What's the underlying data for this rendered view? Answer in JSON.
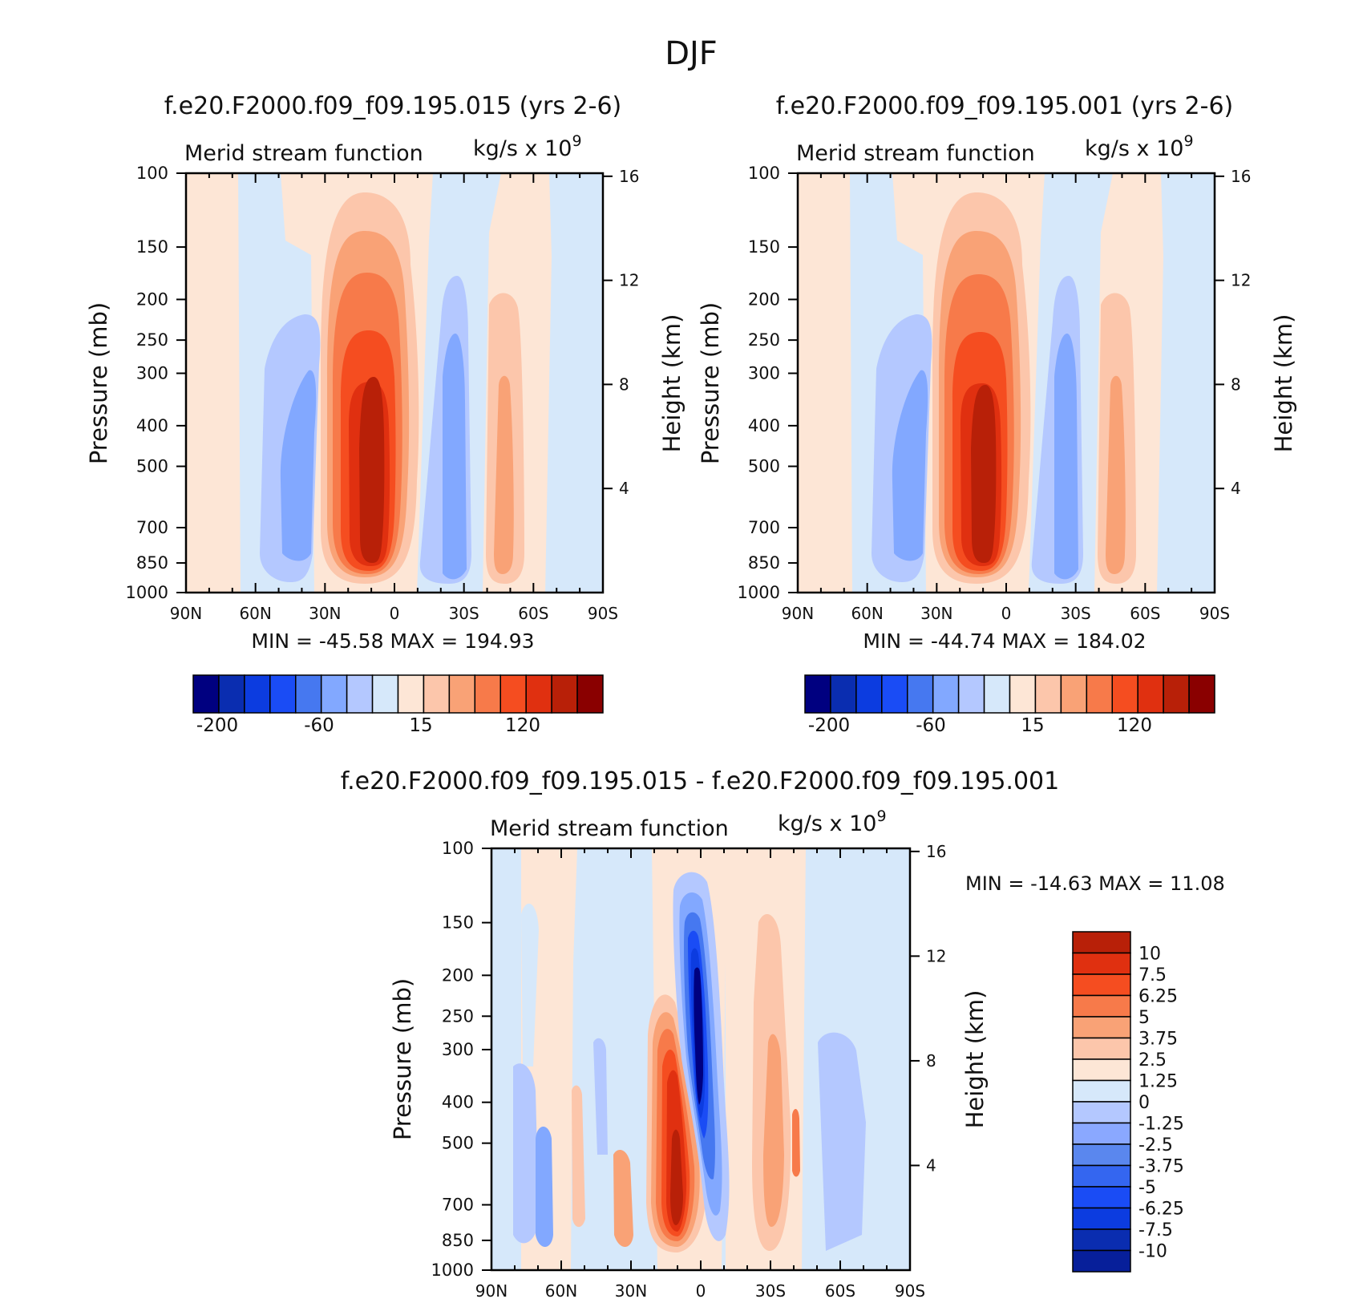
{
  "title": "DJF",
  "xticks": [
    "90N",
    "60N",
    "30N",
    "0",
    "30S",
    "60S",
    "90S"
  ],
  "pticks": [
    "100",
    "150",
    "200",
    "250",
    "300",
    "400",
    "500",
    "700",
    "850",
    "1000"
  ],
  "hticks": [
    "16",
    "12",
    "8",
    "4"
  ],
  "colors": {
    "cb16": [
      "#000080",
      "#0a2db0",
      "#0c3ce0",
      "#1a4cf5",
      "#4678f0",
      "#82a8ff",
      "#b4c8ff",
      "#d6e8fa",
      "#fde6d6",
      "#fcc6ab",
      "#f9a276",
      "#f77a4a",
      "#f54d20",
      "#e03010",
      "#b82008",
      "#8a0000"
    ],
    "cb18": [
      "#000080",
      "#071f9a",
      "#0a2db0",
      "#0c3ce0",
      "#1a4cf5",
      "#3466f0",
      "#5a87ee",
      "#8aa8ff",
      "#b4c8ff",
      "#d6e8fa",
      "#fde6d6",
      "#fcc6ab",
      "#f9a276",
      "#f77a4a",
      "#f54d20",
      "#e03010",
      "#b82008",
      "#8a0000"
    ]
  },
  "panel1": {
    "case_title": "f.e20.F2000.f09_f09.195.015 (yrs  2-6)",
    "left_label": "Merid stream function",
    "units_label": "kg/s x 10",
    "units_exp": "9",
    "ylabel": "Pressure (mb)",
    "y2label": "Height (km)",
    "stats": "MIN = -45.58   MAX = 194.93",
    "cb_labels": [
      "-200",
      "-60",
      "15",
      "120"
    ]
  },
  "panel2": {
    "case_title": "f.e20.F2000.f09_f09.195.001 (yrs  2-6)",
    "left_label": "Merid stream function",
    "units_label": "kg/s x 10",
    "units_exp": "9",
    "ylabel": "Pressure (mb)",
    "y2label": "Height (km)",
    "stats": "MIN = -44.74   MAX = 184.02",
    "cb_labels": [
      "-200",
      "-60",
      "15",
      "120"
    ]
  },
  "panel3": {
    "case_title": "f.e20.F2000.f09_f09.195.015 - f.e20.F2000.f09_f09.195.001",
    "left_label": "Merid stream function",
    "units_label": "kg/s x 10",
    "units_exp": "9",
    "ylabel": "Pressure (mb)",
    "y2label": "Height (km)",
    "stats": "MIN = -14.63   MAX =   11.08",
    "cb_labels": [
      "10",
      "7.5",
      "6.25",
      "5",
      "3.75",
      "2.5",
      "1.25",
      "0",
      "-1.25",
      "-2.5",
      "-3.75",
      "-5",
      "-6.25",
      "-7.5",
      "-10"
    ]
  },
  "chart_data": [
    {
      "type": "heatmap",
      "title": "f.e20.F2000.f09_f09.195.015 (yrs  2-6)",
      "field": "Merid stream function",
      "units": "kg/s x 10^9",
      "xlabel": "",
      "ylabel": "Pressure (mb)",
      "y2label": "Height (km)",
      "xlim": [
        "90N",
        "90S"
      ],
      "ylim": [
        1000,
        100
      ],
      "min": -45.58,
      "max": 194.93,
      "features": [
        {
          "sign": "positive",
          "lat_center": "10N",
          "peak_level_mb": 500,
          "value": 194.93
        },
        {
          "sign": "negative",
          "lat_center": "40N",
          "peak_level_mb": 500,
          "value": -45.58
        },
        {
          "sign": "negative",
          "lat_center": "25S",
          "peak_level_mb": 500
        },
        {
          "sign": "positive",
          "lat_center": "48S",
          "peak_level_mb": 500
        }
      ]
    },
    {
      "type": "heatmap",
      "title": "f.e20.F2000.f09_f09.195.001 (yrs  2-6)",
      "field": "Merid stream function",
      "units": "kg/s x 10^9",
      "xlabel": "",
      "ylabel": "Pressure (mb)",
      "y2label": "Height (km)",
      "xlim": [
        "90N",
        "90S"
      ],
      "ylim": [
        1000,
        100
      ],
      "min": -44.74,
      "max": 184.02,
      "features": [
        {
          "sign": "positive",
          "lat_center": "10N",
          "peak_level_mb": 500,
          "value": 184.02
        },
        {
          "sign": "negative",
          "lat_center": "40N",
          "peak_level_mb": 500,
          "value": -44.74
        },
        {
          "sign": "negative",
          "lat_center": "25S",
          "peak_level_mb": 500
        },
        {
          "sign": "positive",
          "lat_center": "48S",
          "peak_level_mb": 500
        }
      ]
    },
    {
      "type": "heatmap",
      "title": "f.e20.F2000.f09_f09.195.015 - f.e20.F2000.f09_f09.195.001",
      "field": "Merid stream function",
      "units": "kg/s x 10^9",
      "xlabel": "",
      "ylabel": "Pressure (mb)",
      "y2label": "Height (km)",
      "xlim": [
        "90N",
        "90S"
      ],
      "ylim": [
        1000,
        100
      ],
      "min": -14.63,
      "max": 11.08,
      "levels": [
        -10,
        -7.5,
        -6.25,
        -5,
        -3.75,
        -2.5,
        -1.25,
        0,
        1.25,
        2.5,
        3.75,
        5,
        6.25,
        7.5,
        10
      ],
      "features": [
        {
          "sign": "positive",
          "lat_center": "15N",
          "peak_level_mb": 700,
          "value": 11.08
        },
        {
          "sign": "negative",
          "lat_center": "0",
          "peak_level_mb": 300,
          "value": -14.63
        },
        {
          "sign": "positive",
          "lat_center": "40S",
          "peak_level_mb": 500
        },
        {
          "sign": "negative",
          "lat_center": "70N",
          "peak_level_mb": 600
        }
      ]
    }
  ]
}
